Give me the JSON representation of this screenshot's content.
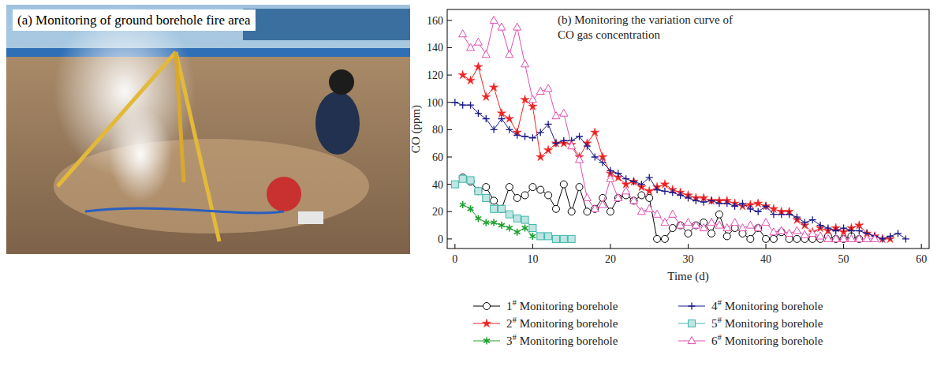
{
  "photo": {
    "caption": "(a) Monitoring of ground borehole fire area"
  },
  "chart_data": {
    "type": "line",
    "title": "(b) Monitoring the variation curve of CO gas concentration",
    "x_label": "Time (d)",
    "y_label": "CO (ppm)",
    "xlim": [
      -1,
      61
    ],
    "ylim": [
      -7,
      168
    ],
    "xticks": [
      0,
      10,
      20,
      30,
      40,
      50,
      60
    ],
    "yticks": [
      0,
      20,
      40,
      60,
      80,
      100,
      120,
      140,
      160
    ],
    "grid": false,
    "legend": "bottom",
    "series": [
      {
        "name": "1# Monitoring borehole",
        "color": "#000000",
        "marker": "circle",
        "line_style": "solid",
        "x": [
          1,
          2,
          3,
          4,
          5,
          6,
          7,
          8,
          9,
          10,
          11,
          12,
          13,
          14,
          15,
          16,
          17,
          18,
          19,
          20,
          21,
          22,
          23,
          24,
          25,
          26,
          27,
          28,
          29,
          30,
          31,
          32,
          33,
          34,
          35,
          36,
          37,
          38,
          39,
          40,
          41,
          42,
          43,
          44,
          45,
          46,
          47,
          48,
          49,
          50,
          51,
          52
        ],
        "values": [
          45,
          42,
          35,
          38,
          28,
          22,
          38,
          30,
          32,
          38,
          36,
          32,
          22,
          40,
          20,
          38,
          20,
          22,
          30,
          20,
          30,
          32,
          28,
          32,
          30,
          0,
          0,
          8,
          10,
          4,
          10,
          12,
          4,
          18,
          2,
          8,
          4,
          0,
          8,
          0,
          0,
          5,
          0,
          0,
          0,
          0,
          0,
          2,
          0,
          0,
          2,
          0
        ]
      },
      {
        "name": "2# Monitoring borehole",
        "color": "#ee2222",
        "marker": "star",
        "line_style": "solid",
        "x": [
          1,
          2,
          3,
          4,
          5,
          6,
          7,
          8,
          9,
          10,
          11,
          12,
          13,
          14,
          15,
          16,
          17,
          18,
          19,
          20,
          21,
          22,
          23,
          24,
          25,
          26,
          27,
          28,
          29,
          30,
          31,
          32,
          33,
          34,
          35,
          36,
          37,
          38,
          39,
          40,
          41,
          42,
          43,
          44,
          45,
          46,
          47,
          48,
          49,
          50,
          51,
          52,
          53,
          54,
          55,
          56
        ],
        "values": [
          120,
          116,
          126,
          104,
          111,
          92,
          88,
          78,
          102,
          97,
          60,
          65,
          70,
          70,
          69,
          60,
          70,
          78,
          60,
          48,
          45,
          40,
          42,
          38,
          35,
          38,
          40,
          36,
          34,
          32,
          30,
          30,
          28,
          28,
          28,
          26,
          24,
          25,
          26,
          24,
          22,
          20,
          20,
          14,
          10,
          5,
          8,
          6,
          8,
          5,
          8,
          10,
          4,
          2,
          0,
          0
        ]
      },
      {
        "name": "3# Monitoring borehole",
        "color": "#1fa02f",
        "marker": "asterisk",
        "line_style": "solid",
        "x": [
          1,
          2,
          3,
          4,
          5,
          6,
          7,
          8,
          9,
          10
        ],
        "values": [
          25,
          22,
          15,
          12,
          12,
          10,
          8,
          5,
          8,
          2
        ]
      },
      {
        "name": "4# Monitoring borehole",
        "color": "#1a1a8c",
        "marker": "plus",
        "line_style": "solid",
        "x": [
          0,
          1,
          2,
          3,
          4,
          5,
          6,
          7,
          8,
          9,
          10,
          11,
          12,
          13,
          14,
          15,
          16,
          17,
          18,
          19,
          20,
          21,
          22,
          23,
          24,
          25,
          26,
          27,
          28,
          29,
          30,
          31,
          32,
          33,
          34,
          35,
          36,
          37,
          38,
          39,
          40,
          41,
          42,
          43,
          44,
          45,
          46,
          47,
          48,
          49,
          50,
          51,
          52,
          53,
          54,
          55,
          56,
          57,
          58
        ],
        "values": [
          100,
          98,
          98,
          92,
          88,
          80,
          88,
          80,
          76,
          75,
          74,
          78,
          84,
          70,
          72,
          72,
          75,
          68,
          60,
          56,
          50,
          48,
          44,
          42,
          40,
          45,
          36,
          35,
          34,
          32,
          30,
          28,
          27,
          28,
          26,
          26,
          24,
          26,
          22,
          20,
          24,
          18,
          18,
          18,
          16,
          12,
          14,
          10,
          8,
          6,
          8,
          6,
          6,
          4,
          2,
          0,
          2,
          4,
          0
        ]
      },
      {
        "name": "5# Monitoring borehole",
        "color": "#3fb7ae",
        "marker": "square",
        "line_style": "solid",
        "x": [
          0,
          1,
          2,
          3,
          4,
          5,
          6,
          7,
          8,
          9,
          10,
          11,
          12,
          13,
          14,
          15
        ],
        "values": [
          40,
          44,
          43,
          35,
          30,
          22,
          22,
          18,
          15,
          14,
          8,
          2,
          2,
          0,
          0,
          0
        ]
      },
      {
        "name": "6# Monitoring borehole",
        "color": "#e04fb0",
        "marker": "triangle",
        "line_style": "solid",
        "x": [
          1,
          2,
          3,
          4,
          5,
          6,
          7,
          8,
          9,
          10,
          11,
          12,
          13,
          14,
          15,
          16,
          17,
          18,
          19,
          20,
          21,
          22,
          23,
          24,
          25,
          26,
          27,
          28,
          29,
          30,
          31,
          32,
          33,
          34,
          35,
          36,
          37,
          38,
          39,
          40,
          41,
          42,
          43,
          44,
          45,
          46,
          47,
          48,
          49,
          50,
          51,
          52,
          53,
          54
        ],
        "values": [
          150,
          140,
          144,
          135,
          160,
          155,
          135,
          155,
          128,
          102,
          108,
          110,
          90,
          92,
          68,
          58,
          30,
          22,
          25,
          44,
          30,
          35,
          28,
          20,
          22,
          18,
          12,
          18,
          10,
          12,
          10,
          8,
          12,
          10,
          8,
          12,
          8,
          10,
          8,
          12,
          5,
          6,
          4,
          6,
          3,
          4,
          2,
          0,
          0,
          0,
          0,
          0,
          0,
          0
        ]
      }
    ]
  }
}
